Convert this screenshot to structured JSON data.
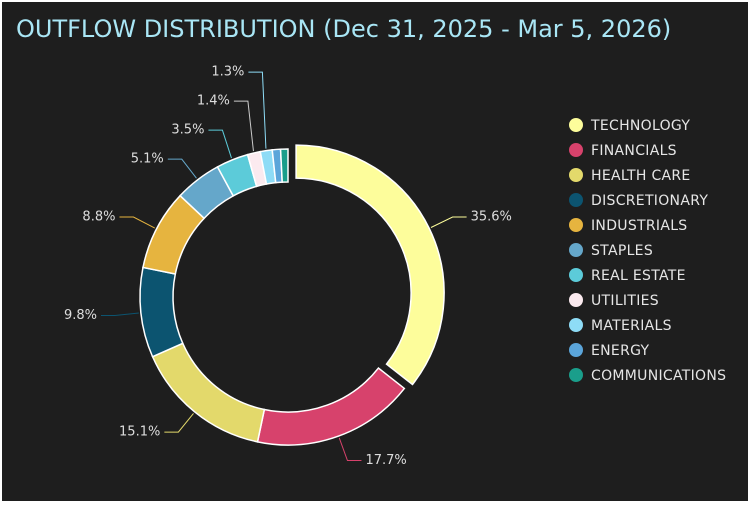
{
  "chart_data": {
    "type": "donut",
    "title": "OUTFLOW DISTRIBUTION (Dec 31, 2025 - Mar 5, 2026)",
    "categories": [
      "TECHNOLOGY",
      "FINANCIALS",
      "HEALTH CARE",
      "DISCRETIONARY",
      "INDUSTRIALS",
      "STAPLES",
      "REAL ESTATE",
      "UTILITIES",
      "MATERIALS",
      "ENERGY",
      "COMMUNICATIONS"
    ],
    "values": [
      35.6,
      17.7,
      15.1,
      9.8,
      8.8,
      5.1,
      3.5,
      1.4,
      1.3,
      0.9,
      0.8
    ],
    "value_labels": [
      "35.6%",
      "17.7%",
      "15.1%",
      "9.8%",
      "8.8%",
      "5.1%",
      "3.5%",
      "1.4%",
      "1.3%",
      null,
      null
    ],
    "colors": [
      "#fdfd9b",
      "#d7426c",
      "#e3d96b",
      "#0c5470",
      "#e6b43f",
      "#65a7ca",
      "#5ccbd9",
      "#fbeaef",
      "#8edcf6",
      "#5ba5da",
      "#1a9e8b"
    ],
    "legend": "right"
  }
}
